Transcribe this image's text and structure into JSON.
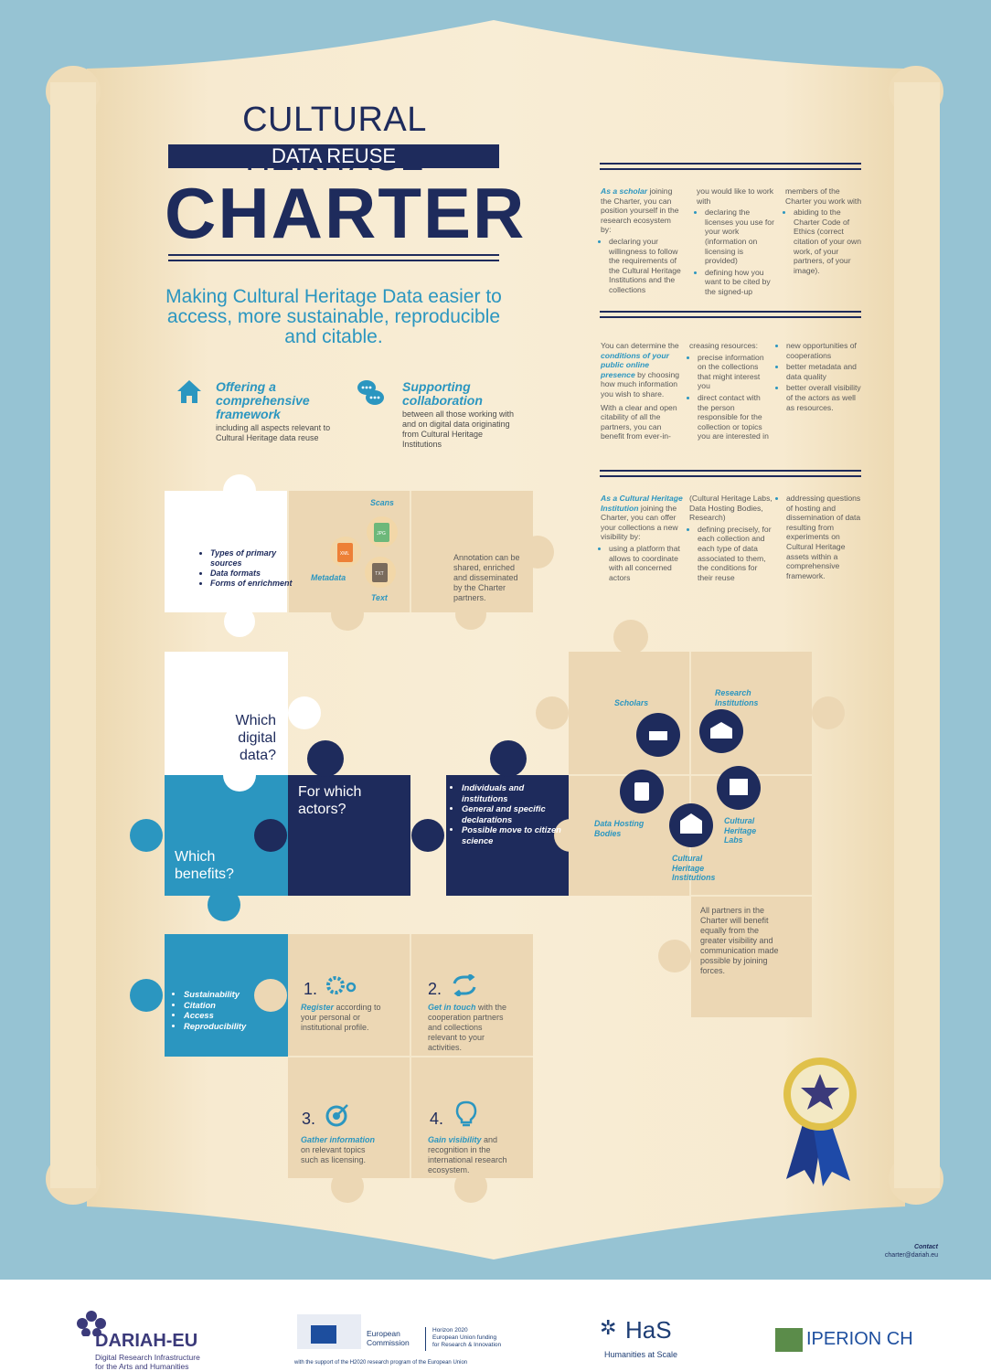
{
  "title": {
    "line1": "CULTURAL HERITAGE",
    "line2": "DATA REUSE",
    "line3": "CHARTER"
  },
  "tagline": "Making Cultural Heritage Data easier to access, more sustainable, reproducible and citable.",
  "features": [
    {
      "icon": "house-icon",
      "heading": "Offering a comprehensive framework",
      "text": "including all aspects relevant to Cultural Heritage data reuse"
    },
    {
      "icon": "chat-bubbles-icon",
      "heading": "Supporting collaboration",
      "text": "between all those working with and on digital data originating from Cultural Heritage Institutions"
    }
  ],
  "scholar_block": {
    "col1_lead": "As a scholar",
    "col1_rest": " joining the Charter, you can position yourself in the research ecosystem by:",
    "col1_bullets": [
      "declaring your willingness to follow the requirements of the Cultural Heritage Institutions and the collections"
    ],
    "col2_intro": "you would like to work with",
    "col2_bullets": [
      "declaring the licenses you use for your work (information on licensing is provided)",
      "defining how you want to be cited by the signed-up"
    ],
    "col3_intro": "members of the Charter you work with",
    "col3_bullets": [
      "abiding to the Charter Code of Ethics (correct citation of your own work, of your partners, of your image)."
    ]
  },
  "presence_block": {
    "col1_a": "You can determine the ",
    "col1_hl": "conditions of your public online presence",
    "col1_b": " by choosing how much information you wish to share.",
    "col1_c": "With a clear and open citability of all the partners, you can benefit from ever-in-",
    "col2_intro": "creasing resources:",
    "col2_bullets": [
      "precise information on the collections that might interest you",
      "direct contact with the person responsible for the collection or topics you are interested in"
    ],
    "col3_bullets": [
      "new opportunities of cooperations",
      "better metadata and data quality",
      "better overall visibility of the actors as well as resources."
    ]
  },
  "institution_block": {
    "col1_lead": "As a Cultural Heritage Institution",
    "col1_rest": " joining the Charter, you can offer your collections a new visibility by:",
    "col1_bullets": [
      "using a platform that allows to coordinate with all concerned actors"
    ],
    "col2_intro": "(Cultural Heritage Labs, Data Hosting Bodies, Research)",
    "col2_bullets": [
      "defining precisely, for each collection and each type of data associated to them, the conditions for their reuse"
    ],
    "col3_bullets": [
      "addressing questions of hosting and dissemination of data resulting from experiments on Cultural Heritage assets within a comprehensive framework."
    ]
  },
  "puzzle_top": {
    "bullets": [
      "Types of primary sources",
      "Data formats",
      "Forms of enrichment"
    ],
    "scans": "Scans",
    "metadata": "Metadata",
    "text": "Text",
    "file_labels": [
      "JPG",
      "XML",
      "TXT"
    ],
    "annotation": "Annotation can be shared, enriched and disseminated by the Charter partners."
  },
  "puzzle_mid": {
    "q_digital": "Which digital data?",
    "q_actors": "For which actors?",
    "q_benefits": "Which benefits?",
    "actor_bullets": [
      "Individuals and institutions",
      "General and specific declarations",
      "Possible move to citizen science"
    ]
  },
  "actors": {
    "scholars": "Scholars",
    "research": "Research Institutions",
    "hosting": "Data Hosting Bodies",
    "labs": "Cultural Heritage Labs",
    "institutions": "Cultural Heritage Institutions",
    "benefit_text": "All partners in the Charter will benefit equally from the greater visibility and communication made possible by joining forces."
  },
  "benefits": [
    "Sustainability",
    "Citation",
    "Access",
    "Reproducibility"
  ],
  "steps": [
    {
      "num": "1.",
      "hl": "Register",
      "rest": " according to your personal or institutional profile.",
      "icon": "gears-icon"
    },
    {
      "num": "2.",
      "hl": "Get in touch",
      "rest": " with the cooperation partners and collections relevant to your activities.",
      "icon": "refresh-arrows-icon"
    },
    {
      "num": "3.",
      "hl": "Gather information",
      "rest": " on relevant topics such as licensing.",
      "icon": "target-icon"
    },
    {
      "num": "4.",
      "hl": "Gain visibility",
      "rest": " and recognition in the international research ecosystem.",
      "icon": "lightbulb-icon"
    }
  ],
  "contact": {
    "label": "Contact",
    "email": "charter@dariah.eu"
  },
  "footer": {
    "dariah_name": "DARIAH-EU",
    "dariah_sub1": "Digital Research Infrastructure",
    "dariah_sub2": "for the Arts and Humanities",
    "ec_name1": "European",
    "ec_name2": "Commission",
    "h2020_1": "Horizon 2020",
    "h2020_2": "European Union funding",
    "h2020_3": "for Research & Innovation",
    "support": "with the support of the H2020 research program of the European Union",
    "has_name": "HaS",
    "has_sub": "Humanities at Scale",
    "iperion": "IPERION CH"
  },
  "colors": {
    "navy": "#1e2b5c",
    "blue": "#2b96c0",
    "tan": "#ecd7b4",
    "parchment": "#f4e6c6",
    "background": "#96c3d3"
  }
}
